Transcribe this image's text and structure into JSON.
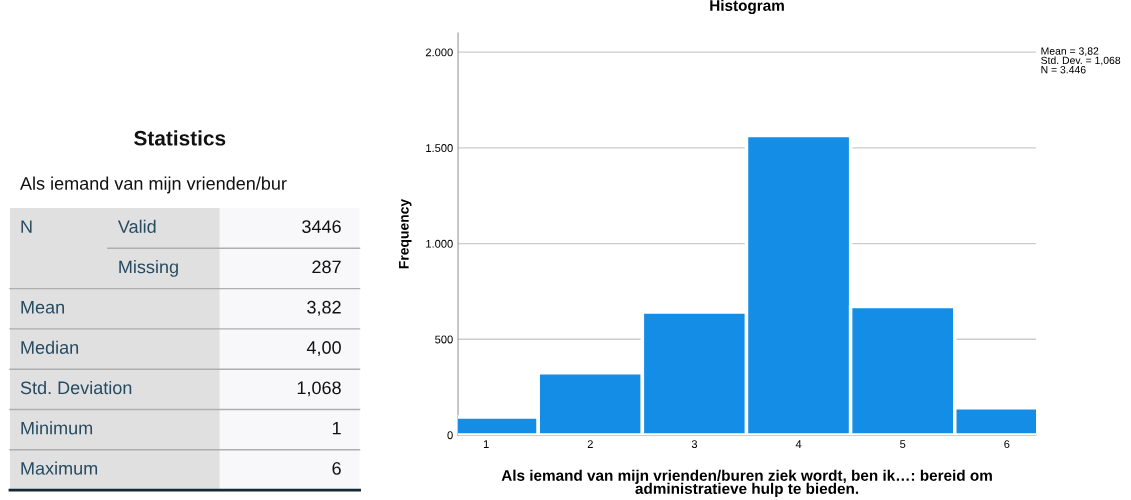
{
  "chart_data": [
    {
      "type": "other",
      "title": "Statistics",
      "subtitle": "Als iemand van mijn vrienden/bur",
      "categories": [
        "Valid",
        "Missing",
        "Mean",
        "Median",
        "Std. Deviation",
        "Minimum",
        "Maximum"
      ],
      "values": [
        3446,
        287,
        3.82,
        4.0,
        1.068,
        1,
        6
      ],
      "value_labels": [
        "3446",
        "287",
        "3,82",
        "4,00",
        "1,068",
        "1",
        "6"
      ],
      "annotations": [
        "N"
      ]
    },
    {
      "type": "histogram",
      "title": "Histogram",
      "xlabel": "Als iemand van mijn vrienden/buren ziek wordt, ben ik…: bereid om\nadministratieve hulp te bieden.",
      "ylabel": "Frequency",
      "bins": [
        0.5,
        1.5,
        2.5,
        3.5,
        4.5,
        5.5,
        6.5
      ],
      "values": [
        94,
        325,
        643,
        1565,
        671,
        142
      ],
      "color": "#138de6",
      "xlim": [
        0.73,
        6.28
      ],
      "xticks": [
        1,
        2,
        3,
        4,
        5,
        6
      ],
      "ylim": [
        0,
        2100
      ],
      "yticks": [
        {
          "value": 0,
          "label": "0"
        },
        {
          "value": 500,
          "label": "500"
        },
        {
          "value": 1000,
          "label": "1.000"
        },
        {
          "value": 1500,
          "label": "1.500"
        },
        {
          "value": 2000,
          "label": "2.000"
        }
      ],
      "grid": "y",
      "annotations": [
        "Mean = 3,82",
        "Std. Dev. = 1,068",
        "N = 3.446"
      ]
    }
  ]
}
